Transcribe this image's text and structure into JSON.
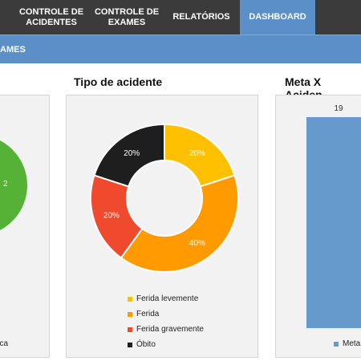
{
  "nav": {
    "items": [
      {
        "label": "CONTROLE DE\nACIDENTES",
        "active": false
      },
      {
        "label": "CONTROLE DE\nEXAMES",
        "active": false
      },
      {
        "label": "RELATÓRIOS",
        "active": false
      },
      {
        "label": "DASHBOARD",
        "active": true
      }
    ]
  },
  "subbar": {
    "label": "AMES"
  },
  "left_chart": {
    "slice_label": "2",
    "legend_partial": "lica",
    "color": "#55b236"
  },
  "donut": {
    "title": "Tipo de acidente",
    "legend": [
      {
        "label": "Ferida levemente",
        "color": "#ffc000"
      },
      {
        "label": "Ferida",
        "color": "#ff9a00"
      },
      {
        "label": "Ferida gravemente",
        "color": "#f04a2e"
      },
      {
        "label": "Óbito",
        "color": "#1e1e1e"
      }
    ]
  },
  "bar_panel": {
    "title": "Meta X Aciden",
    "legend_label": "Meta",
    "color": "#6699cc"
  },
  "chart_data": [
    {
      "type": "pie",
      "title": "Tipo de acidente",
      "categories": [
        "Ferida levemente",
        "Ferida",
        "Ferida gravemente",
        "Óbito"
      ],
      "values": [
        20,
        40,
        20,
        20
      ],
      "labels": [
        "20%",
        "40%",
        "20%",
        "20%"
      ],
      "colors": [
        "#ffc000",
        "#ff9a00",
        "#f04a2e",
        "#1e1e1e"
      ],
      "legend": "bottom"
    },
    {
      "type": "bar",
      "title": "Meta X Aciden",
      "categories": [
        "Meta"
      ],
      "values": [
        19
      ],
      "data_labels": [
        "19"
      ]
    }
  ]
}
